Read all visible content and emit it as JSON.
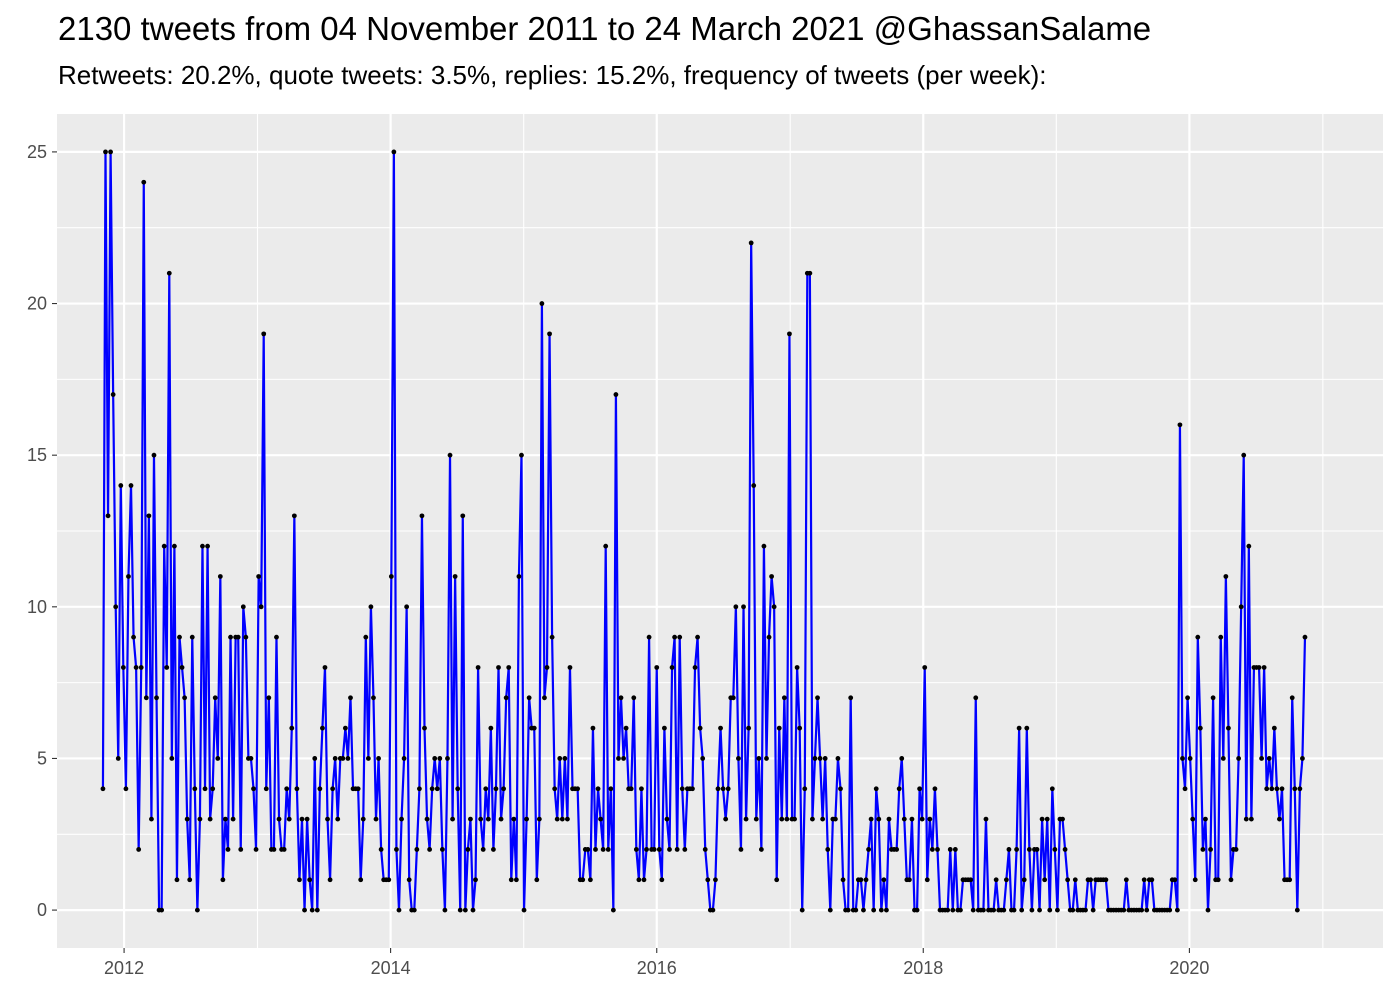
{
  "chart_data": {
    "type": "line",
    "title": "2130 tweets from 04 November 2011 to 24 March 2021 @GhassanSalame",
    "subtitle": "Retweets: 20.2%, quote tweets: 3.5%, replies: 15.2%, frequency of tweets (per week):",
    "xlabel": "",
    "ylabel": "",
    "x_tick_labels": [
      "2012",
      "2014",
      "2016",
      "2018",
      "2020"
    ],
    "y_tick_labels": [
      "0",
      "5",
      "10",
      "15",
      "20",
      "25"
    ],
    "xlim": [
      "2011-07-01",
      "2021-06-15"
    ],
    "ylim": [
      -1.25,
      26.25
    ],
    "grid": true,
    "line_color": "#0000ff",
    "point_color": "#000000",
    "panel_color": "#ebebeb",
    "x_anchor_date": "2011-11-04",
    "week_step_days": 7,
    "weekly_counts": [
      4,
      25,
      13,
      25,
      17,
      10,
      5,
      14,
      8,
      4,
      11,
      14,
      9,
      8,
      2,
      8,
      24,
      7,
      13,
      3,
      15,
      7,
      0,
      0,
      12,
      8,
      21,
      5,
      12,
      1,
      9,
      8,
      7,
      3,
      1,
      9,
      4,
      0,
      3,
      12,
      4,
      12,
      3,
      4,
      7,
      5,
      11,
      1,
      3,
      2,
      9,
      3,
      9,
      9,
      2,
      10,
      9,
      5,
      5,
      4,
      2,
      11,
      10,
      19,
      4,
      7,
      2,
      2,
      9,
      3,
      2,
      2,
      4,
      3,
      6,
      13,
      4,
      1,
      3,
      0,
      3,
      1,
      0,
      5,
      0,
      4,
      6,
      8,
      3,
      1,
      4,
      5,
      3,
      5,
      5,
      6,
      5,
      7,
      4,
      4,
      4,
      1,
      3,
      9,
      5,
      10,
      7,
      3,
      5,
      2,
      1,
      1,
      1,
      11,
      25,
      2,
      0,
      3,
      5,
      10,
      1,
      0,
      0,
      2,
      4,
      13,
      6,
      3,
      2,
      4,
      5,
      4,
      5,
      2,
      0,
      5,
      15,
      3,
      11,
      4,
      0,
      13,
      0,
      2,
      3,
      0,
      1,
      8,
      3,
      2,
      4,
      3,
      6,
      2,
      4,
      8,
      3,
      4,
      7,
      8,
      1,
      3,
      1,
      11,
      15,
      0,
      3,
      7,
      6,
      6,
      1,
      3,
      20,
      7,
      8,
      19,
      9,
      4,
      3,
      5,
      3,
      5,
      3,
      8,
      4,
      4,
      4,
      1,
      1,
      2,
      2,
      1,
      6,
      2,
      4,
      3,
      2,
      12,
      2,
      4,
      0,
      17,
      5,
      7,
      5,
      6,
      4,
      4,
      7,
      2,
      1,
      4,
      1,
      2,
      9,
      2,
      2,
      8,
      2,
      1,
      6,
      3,
      2,
      8,
      9,
      2,
      9,
      4,
      2,
      4,
      4,
      4,
      8,
      9,
      6,
      5,
      2,
      1,
      0,
      0,
      1,
      4,
      6,
      4,
      3,
      4,
      7,
      7,
      10,
      5,
      2,
      10,
      3,
      6,
      22,
      14,
      3,
      5,
      2,
      12,
      5,
      9,
      11,
      10,
      1,
      6,
      3,
      7,
      3,
      19,
      3,
      3,
      8,
      6,
      0,
      4,
      21,
      21,
      3,
      5,
      7,
      5,
      3,
      5,
      2,
      0,
      3,
      3,
      5,
      4,
      1,
      0,
      0,
      7,
      0,
      0,
      1,
      1,
      0,
      1,
      2,
      3,
      0,
      4,
      3,
      0,
      1,
      0,
      3,
      2,
      2,
      2,
      4,
      5,
      3,
      1,
      1,
      3,
      0,
      0,
      4,
      3,
      8,
      1,
      3,
      2,
      4,
      2,
      0,
      0,
      0,
      0,
      2,
      0,
      2,
      0,
      0,
      1,
      1,
      1,
      1,
      0,
      7,
      0,
      0,
      0,
      3,
      0,
      0,
      0,
      1,
      0,
      0,
      0,
      1,
      2,
      0,
      0,
      2,
      6,
      0,
      1,
      6,
      2,
      0,
      2,
      2,
      0,
      3,
      1,
      3,
      0,
      4,
      2,
      0,
      3,
      3,
      2,
      1,
      0,
      0,
      1,
      0,
      0,
      0,
      0,
      1,
      1,
      0,
      1,
      1,
      1,
      1,
      1,
      0,
      0,
      0,
      0,
      0,
      0,
      0,
      1,
      0,
      0,
      0,
      0,
      0,
      0,
      1,
      0,
      1,
      1,
      0,
      0,
      0,
      0,
      0,
      0,
      0,
      1,
      1,
      0,
      16,
      5,
      4,
      7,
      5,
      3,
      1,
      9,
      6,
      2,
      3,
      0,
      2,
      7,
      1,
      1,
      9,
      5,
      11,
      6,
      1,
      2,
      2,
      5,
      10,
      15,
      3,
      12,
      3,
      8,
      8,
      8,
      5,
      8,
      4,
      5,
      4,
      6,
      4,
      3,
      4,
      1,
      1,
      1,
      7,
      4,
      0,
      4,
      5,
      9
    ]
  }
}
